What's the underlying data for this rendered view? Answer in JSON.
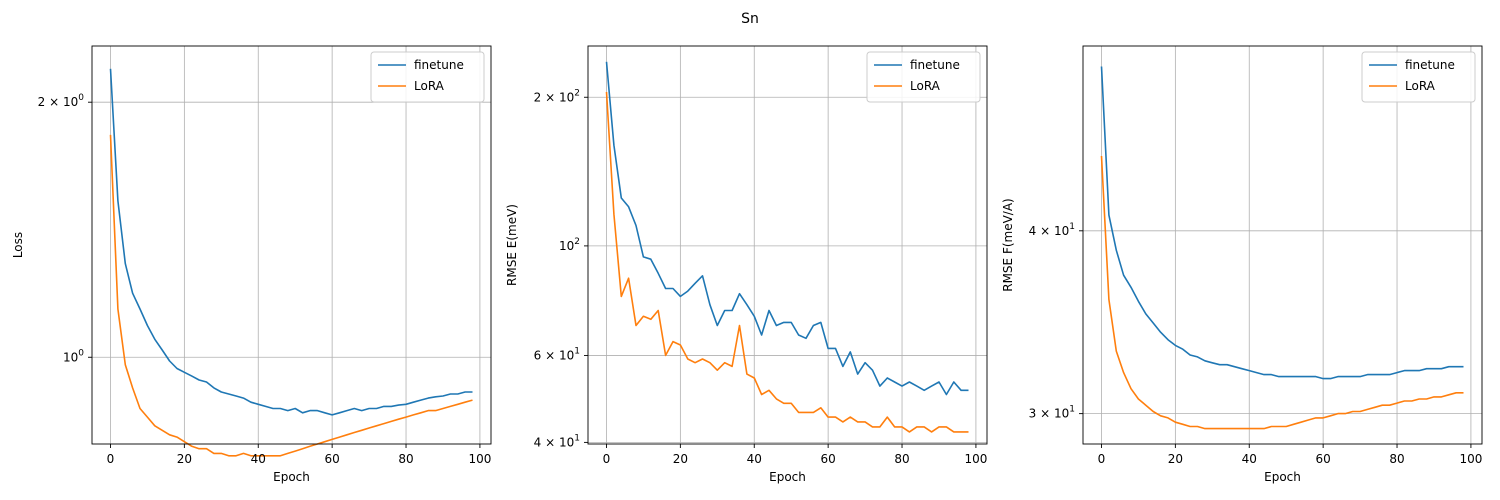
{
  "figure_title": "Sn",
  "colors": {
    "finetune": "#1f77b4",
    "LoRA": "#ff7f0e",
    "grid": "#b0b0b0"
  },
  "chart_data": [
    {
      "type": "line",
      "xlabel": "Epoch",
      "ylabel": "Loss",
      "yscale": "log",
      "xlim": [
        -5,
        103
      ],
      "ylim": [
        0.79,
        2.33
      ],
      "x_ticks": [
        0,
        20,
        40,
        60,
        80,
        100
      ],
      "y_ticks": [
        {
          "value": 2,
          "label_base": "2 × 10",
          "label_exp": "0"
        },
        {
          "value": 1,
          "label_base": "10",
          "label_exp": "0"
        }
      ],
      "grid": true,
      "legend": "upper right",
      "x": [
        0,
        2,
        4,
        6,
        8,
        10,
        12,
        14,
        16,
        18,
        20,
        22,
        24,
        26,
        28,
        30,
        32,
        34,
        36,
        38,
        40,
        42,
        44,
        46,
        48,
        50,
        52,
        54,
        56,
        58,
        60,
        62,
        64,
        66,
        68,
        70,
        72,
        74,
        76,
        78,
        80,
        82,
        84,
        86,
        88,
        90,
        92,
        94,
        96,
        98
      ],
      "series": [
        {
          "name": "finetune",
          "values": [
            2.19,
            1.53,
            1.29,
            1.19,
            1.14,
            1.09,
            1.05,
            1.02,
            0.99,
            0.97,
            0.96,
            0.95,
            0.94,
            0.935,
            0.92,
            0.91,
            0.905,
            0.9,
            0.895,
            0.885,
            0.88,
            0.875,
            0.87,
            0.87,
            0.865,
            0.87,
            0.86,
            0.865,
            0.865,
            0.86,
            0.855,
            0.86,
            0.865,
            0.87,
            0.865,
            0.87,
            0.87,
            0.875,
            0.875,
            0.878,
            0.88,
            0.885,
            0.89,
            0.895,
            0.898,
            0.9,
            0.905,
            0.905,
            0.91,
            0.91
          ]
        },
        {
          "name": "LoRA",
          "values": [
            1.83,
            1.14,
            0.98,
            0.92,
            0.87,
            0.85,
            0.83,
            0.82,
            0.81,
            0.805,
            0.795,
            0.785,
            0.78,
            0.78,
            0.77,
            0.77,
            0.765,
            0.765,
            0.77,
            0.765,
            0.765,
            0.765,
            0.765,
            0.765,
            0.77,
            0.775,
            0.78,
            0.785,
            0.79,
            0.795,
            0.8,
            0.805,
            0.81,
            0.815,
            0.82,
            0.825,
            0.83,
            0.835,
            0.84,
            0.845,
            0.85,
            0.855,
            0.86,
            0.865,
            0.865,
            0.87,
            0.875,
            0.88,
            0.885,
            0.89
          ]
        }
      ]
    },
    {
      "type": "line",
      "xlabel": "Epoch",
      "ylabel": "RMSE E(meV)",
      "yscale": "log",
      "xlim": [
        -5,
        103
      ],
      "ylim": [
        39.7,
        254
      ],
      "x_ticks": [
        0,
        20,
        40,
        60,
        80,
        100
      ],
      "y_ticks": [
        {
          "value": 200,
          "label_base": "2 × 10",
          "label_exp": "2"
        },
        {
          "value": 100,
          "label_base": "10",
          "label_exp": "2"
        },
        {
          "value": 60,
          "label_base": "6 × 10",
          "label_exp": "1"
        },
        {
          "value": 40,
          "label_base": "4 × 10",
          "label_exp": "1"
        }
      ],
      "grid": true,
      "legend": "upper right",
      "x": [
        0,
        2,
        4,
        6,
        8,
        10,
        12,
        14,
        16,
        18,
        20,
        22,
        24,
        26,
        28,
        30,
        32,
        34,
        36,
        38,
        40,
        42,
        44,
        46,
        48,
        50,
        52,
        54,
        56,
        58,
        60,
        62,
        64,
        66,
        68,
        70,
        72,
        74,
        76,
        78,
        80,
        82,
        84,
        86,
        88,
        90,
        92,
        94,
        96,
        98
      ],
      "series": [
        {
          "name": "finetune",
          "values": [
            236,
            160,
            125,
            120,
            110,
            95,
            94,
            88,
            82,
            82,
            79,
            81,
            84,
            87,
            76,
            69,
            74,
            74,
            80,
            76,
            72,
            66,
            74,
            69,
            70,
            70,
            66,
            65,
            69,
            70,
            62,
            62,
            57,
            61,
            55,
            58,
            56,
            52,
            54,
            53,
            52,
            53,
            52,
            51,
            52,
            53,
            50,
            53,
            51,
            51
          ]
        },
        {
          "name": "LoRA",
          "values": [
            205,
            116,
            79,
            86,
            69,
            72,
            71,
            74,
            60,
            64,
            63,
            59,
            58,
            59,
            58,
            56,
            58,
            57,
            69,
            55,
            54,
            50,
            51,
            49,
            48,
            48,
            46,
            46,
            46,
            47,
            45,
            45,
            44,
            45,
            44,
            44,
            43,
            43,
            45,
            43,
            43,
            42,
            43,
            43,
            42,
            43,
            43,
            42,
            42,
            42
          ]
        }
      ]
    },
    {
      "type": "line",
      "xlabel": "Epoch",
      "ylabel": "RMSE F(meV/A)",
      "yscale": "log",
      "xlim": [
        -5,
        103
      ],
      "ylim": [
        28.6,
        53.5
      ],
      "x_ticks": [
        0,
        20,
        40,
        60,
        80,
        100
      ],
      "y_ticks": [
        {
          "value": 40,
          "label_base": "4 × 10",
          "label_exp": "1"
        },
        {
          "value": 30,
          "label_base": "3 × 10",
          "label_exp": "1"
        }
      ],
      "grid": true,
      "legend": "upper right",
      "x": [
        0,
        2,
        4,
        6,
        8,
        10,
        12,
        14,
        16,
        18,
        20,
        22,
        24,
        26,
        28,
        30,
        32,
        34,
        36,
        38,
        40,
        42,
        44,
        46,
        48,
        50,
        52,
        54,
        56,
        58,
        60,
        62,
        64,
        66,
        68,
        70,
        72,
        74,
        76,
        78,
        80,
        82,
        84,
        86,
        88,
        90,
        92,
        94,
        96,
        98
      ],
      "series": [
        {
          "name": "finetune",
          "values": [
            51.8,
            41.0,
            38.8,
            37.3,
            36.6,
            35.8,
            35.1,
            34.6,
            34.1,
            33.7,
            33.4,
            33.2,
            32.9,
            32.8,
            32.6,
            32.5,
            32.4,
            32.4,
            32.3,
            32.2,
            32.1,
            32.0,
            31.9,
            31.9,
            31.8,
            31.8,
            31.8,
            31.8,
            31.8,
            31.8,
            31.7,
            31.7,
            31.8,
            31.8,
            31.8,
            31.8,
            31.9,
            31.9,
            31.9,
            31.9,
            32.0,
            32.1,
            32.1,
            32.1,
            32.2,
            32.2,
            32.2,
            32.3,
            32.3,
            32.3
          ]
        },
        {
          "name": "LoRA",
          "values": [
            45.0,
            35.9,
            33.1,
            32.0,
            31.2,
            30.7,
            30.4,
            30.1,
            29.9,
            29.8,
            29.6,
            29.5,
            29.4,
            29.4,
            29.3,
            29.3,
            29.3,
            29.3,
            29.3,
            29.3,
            29.3,
            29.3,
            29.3,
            29.4,
            29.4,
            29.4,
            29.5,
            29.6,
            29.7,
            29.8,
            29.8,
            29.9,
            30.0,
            30.0,
            30.1,
            30.1,
            30.2,
            30.3,
            30.4,
            30.4,
            30.5,
            30.6,
            30.6,
            30.7,
            30.7,
            30.8,
            30.8,
            30.9,
            31.0,
            31.0
          ]
        }
      ]
    }
  ]
}
